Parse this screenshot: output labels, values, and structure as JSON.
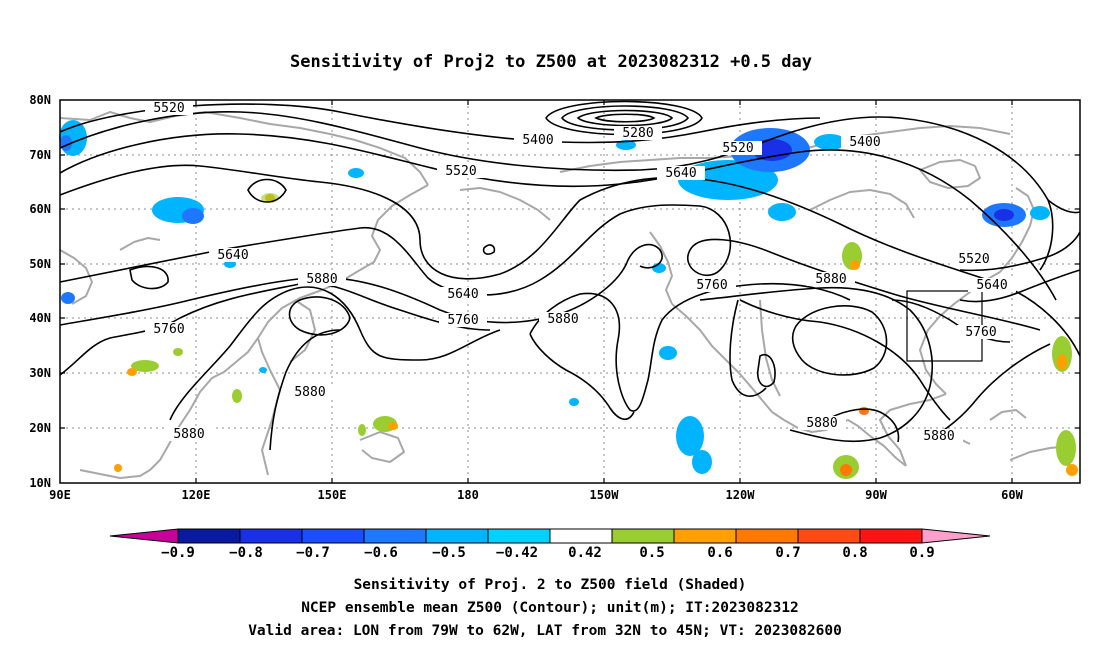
{
  "title": "Sensitivity of Proj2 to Z500 at 2023082312 +0.5 day",
  "x_ticks": [
    "90E",
    "120E",
    "150E",
    "180",
    "150W",
    "120W",
    "90W",
    "60W"
  ],
  "y_ticks": [
    "10N",
    "20N",
    "30N",
    "40N",
    "50N",
    "60N",
    "70N",
    "80N"
  ],
  "contour_labels": [
    "5520",
    "5400",
    "5280",
    "5520",
    "5400",
    "5520",
    "5640",
    "5640",
    "5880",
    "5640",
    "5760",
    "5760",
    "5880",
    "5880",
    "5760",
    "5880",
    "5520",
    "5640",
    "5760",
    "5880",
    "5880",
    "5880"
  ],
  "colorbar": {
    "labels": [
      "−0.9",
      "−0.8",
      "−0.7",
      "−0.6",
      "−0.5",
      "−0.42",
      "0.42",
      "0.5",
      "0.6",
      "0.7",
      "0.8",
      "0.9"
    ],
    "colors": [
      "#c8009a",
      "#0a1aa0",
      "#1a30e6",
      "#1a4eff",
      "#1e78ff",
      "#00b4ff",
      "#00d2ff",
      "#ffffff",
      "#9acd32",
      "#ffa000",
      "#ff7800",
      "#ff4a14",
      "#ff1414",
      "#ffa0cc"
    ]
  },
  "footer": [
    "Sensitivity of Proj. 2 to Z500 field (Shaded)",
    "NCEP ensemble mean Z500 (Contour); unit(m); IT:2023082312",
    "Valid area: LON from 79W to 62W, LAT from 32N to 45N; VT: 2023082600"
  ]
}
